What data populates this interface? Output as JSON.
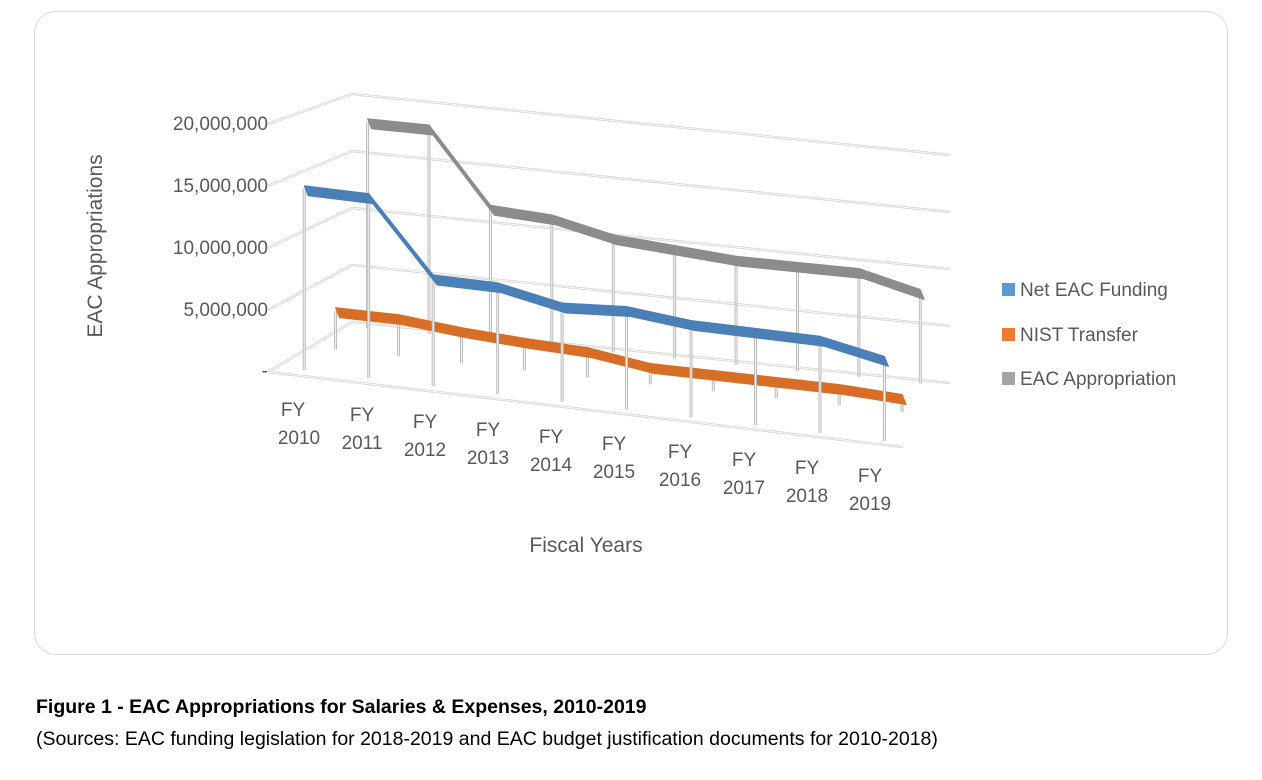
{
  "chart_data": {
    "type": "line",
    "subtype": "3d-line",
    "title": "",
    "xlabel": "Fiscal Years",
    "ylabel": "EAC Appropriations",
    "ylim": [
      0,
      20000000
    ],
    "yticks": [
      0,
      5000000,
      10000000,
      15000000,
      20000000
    ],
    "ytick_labels": [
      "-",
      "5,000,000",
      "10,000,000",
      "15,000,000",
      "20,000,000"
    ],
    "grid": true,
    "legend_position": "right",
    "categories": [
      [
        "FY",
        "2010"
      ],
      [
        "FY",
        "2011"
      ],
      [
        "FY",
        "2012"
      ],
      [
        "FY",
        "2013"
      ],
      [
        "FY",
        "2014"
      ],
      [
        "FY",
        "2015"
      ],
      [
        "FY",
        "2016"
      ],
      [
        "FY",
        "2017"
      ],
      [
        "FY",
        "2018"
      ],
      [
        "FY",
        "2019"
      ]
    ],
    "series": [
      {
        "name": "Net EAC Funding",
        "color": "#4a7fb8",
        "values": [
          14700000,
          14700000,
          8750000,
          8750000,
          7750000,
          8100000,
          7600000,
          7600000,
          7600000,
          6600000
        ]
      },
      {
        "name": "NIST Transfer",
        "color": "#d86e26",
        "values": [
          3250000,
          3250000,
          2750000,
          2450000,
          2250000,
          1500000,
          1500000,
          1500000,
          1500000,
          1250000
        ]
      },
      {
        "name": "EAC Appropriation",
        "color": "#8c8c8c",
        "values": [
          17960000,
          17960000,
          11500000,
          11200000,
          10000000,
          9600000,
          9200000,
          9200000,
          9200000,
          7900000
        ]
      }
    ]
  },
  "caption": {
    "title": "Figure 1 - EAC Appropriations for Salaries & Expenses, 2010-2019",
    "source": "(Sources: EAC funding legislation for 2018-2019 and EAC budget justification documents for 2010-2018)"
  },
  "legend_swatch_colors": {
    "Net EAC Funding": "#5b9bd5",
    "NIST Transfer": "#ed7d31",
    "EAC Appropriation": "#a5a5a5"
  }
}
